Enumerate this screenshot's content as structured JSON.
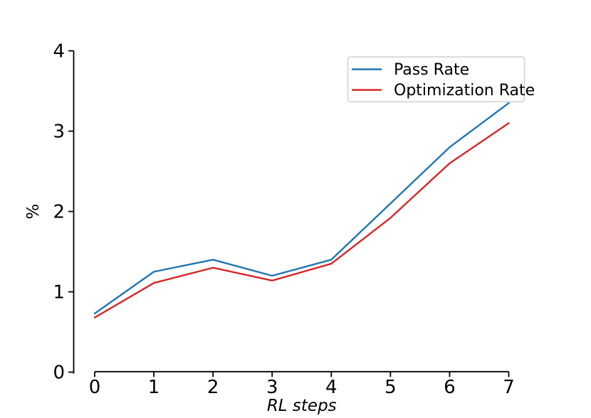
{
  "figure": {
    "background": "#ffffff",
    "axis_color": "#000000"
  },
  "chart_data": {
    "type": "line",
    "title": "",
    "xlabel": "RL steps",
    "ylabel": "%",
    "x": [
      0,
      1,
      2,
      3,
      4,
      5,
      6,
      7
    ],
    "series": [
      {
        "name": "Pass Rate",
        "color": "#1f77b4",
        "values": [
          0.73,
          1.25,
          1.4,
          1.2,
          1.4,
          2.1,
          2.8,
          3.35
        ]
      },
      {
        "name": "Optimization Rate",
        "color": "#d62728",
        "values": [
          0.68,
          1.11,
          1.3,
          1.14,
          1.35,
          1.92,
          2.6,
          3.1
        ]
      }
    ],
    "xlim": [
      0,
      7
    ],
    "ylim": [
      0,
      4
    ],
    "xticks": [
      "0",
      "1",
      "2",
      "3",
      "4",
      "5",
      "6",
      "7"
    ],
    "yticks": [
      "0",
      "1",
      "2",
      "3",
      "4"
    ],
    "grid": false,
    "spines": "left-bottom-only-trimmed",
    "legend": {
      "position": "upper-right",
      "entries": [
        "Pass Rate",
        "Optimization Rate"
      ],
      "border_color": "#d0d0d0",
      "background": "#ffffff"
    },
    "axis_color": "#000000"
  }
}
